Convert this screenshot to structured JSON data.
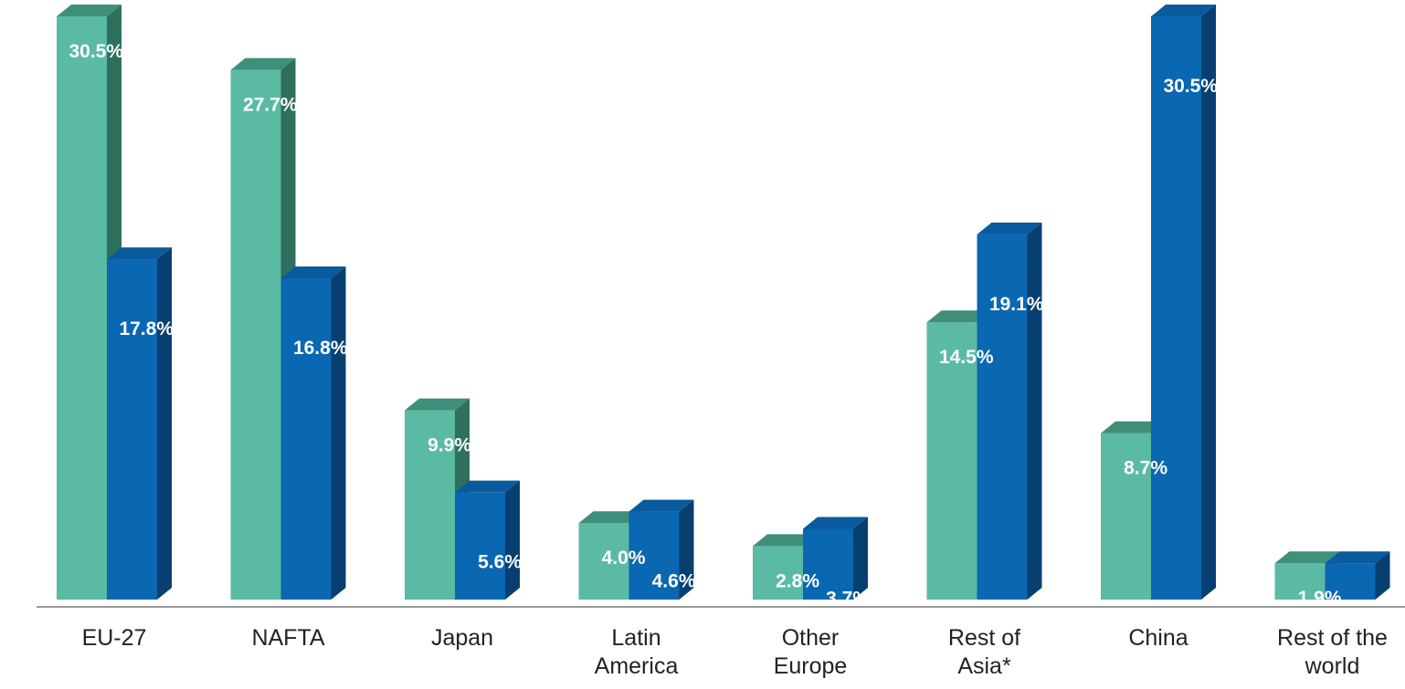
{
  "colors": {
    "series1_front": "#5bbaa4",
    "series1_top": "#3f8f7b",
    "series1_side": "#2f6f5e",
    "series2_front": "#0a67b2",
    "series2_top": "#0a5a9e",
    "series2_side": "#073f70",
    "axis": "#9a9a9a",
    "label_text": "#ffffff",
    "category_text": "#222222"
  },
  "chart_data": {
    "type": "bar",
    "style": "3d-clustered-column",
    "categories": [
      [
        "EU-27"
      ],
      [
        "NAFTA"
      ],
      [
        "Japan"
      ],
      [
        "Latin",
        "America"
      ],
      [
        "Other",
        "Europe"
      ],
      [
        "Rest of",
        "Asia*"
      ],
      [
        "China"
      ],
      [
        "Rest of the",
        "world"
      ]
    ],
    "series": [
      {
        "values": [
          30.5,
          27.7,
          9.9,
          4.0,
          2.8,
          14.5,
          8.7,
          1.9
        ],
        "labels": [
          "30.5%",
          "27.7%",
          "9.9%",
          "4.0%",
          "2.8%",
          "14.5%",
          "8.7%",
          "1.9%"
        ]
      },
      {
        "values": [
          17.8,
          16.8,
          5.6,
          4.6,
          3.7,
          19.1,
          30.5,
          1.9
        ],
        "labels": [
          "17.8%",
          "16.8%",
          "5.6%",
          "4.6%",
          "3.7%",
          "19.1%",
          "30.5%",
          "1.9%"
        ]
      }
    ],
    "ylim": [
      0,
      30.5
    ],
    "grid": false,
    "legend": "none"
  }
}
